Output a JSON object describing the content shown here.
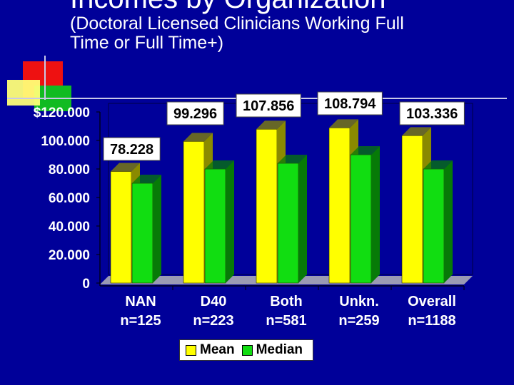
{
  "slide": {
    "title": "Incomes by Organization",
    "subtitle_lines": [
      "(Doctoral Licensed Clinicians Working Full",
      "Time or Full Time+)"
    ]
  },
  "colors": {
    "background": "#000099",
    "mean": "#ffff00",
    "mean_side": "#8a8a00",
    "median": "#11dd11",
    "median_side": "#077a07",
    "plot_back": "#00009a",
    "floor": "#9a9ab4"
  },
  "chart_data": {
    "type": "bar",
    "categories": [
      "NAN",
      "D40",
      "Both",
      "Unkn.",
      "Overall"
    ],
    "category_sublabels": [
      "n=125",
      "n=223",
      "n=581",
      "n=259",
      "n=1188"
    ],
    "series": [
      {
        "name": "Mean",
        "values": [
          78.228,
          99.296,
          107.856,
          108.794,
          103.336
        ]
      },
      {
        "name": "Median",
        "values": [
          70,
          80,
          84,
          90,
          80
        ]
      }
    ],
    "data_labels": [
      "78.228",
      "99.296",
      "107.856",
      "108.794",
      "103.336"
    ],
    "y_ticks": [
      "0",
      "20.000",
      "40.000",
      "60.000",
      "80.000",
      "100.000",
      "$120.000"
    ],
    "ylim": [
      0,
      120
    ],
    "grid": false,
    "legend_position": "bottom"
  }
}
